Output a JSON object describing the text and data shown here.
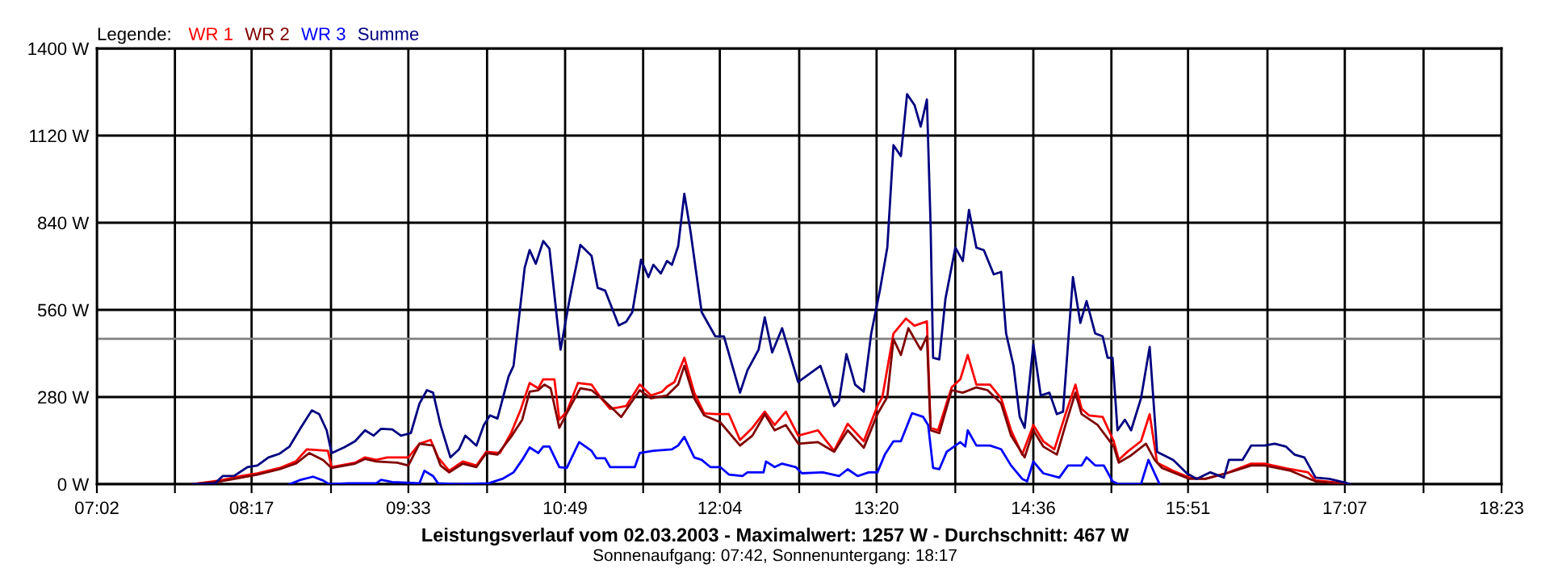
{
  "chart_data": {
    "type": "line",
    "title": "Leistungsverlauf vom 02.03.2003 - Maximalwert: 1257 W - Durchschnitt: 467 W",
    "subtitle": "Sonnenaufgang: 07:42, Sonnenuntergang: 18:17",
    "legend_title": "Legende:",
    "legend": "top left",
    "grid": true,
    "marker": "none",
    "line_style": "solid",
    "xlim": [
      7.0333,
      18.3833
    ],
    "ylim": [
      0,
      1400
    ],
    "xticks": [
      {
        "value": 7.0333,
        "label": "07:02"
      },
      {
        "value": 7.6639,
        "label": null
      },
      {
        "value": 8.2833,
        "label": "08:17"
      },
      {
        "value": 8.925,
        "label": null
      },
      {
        "value": 9.55,
        "label": "09:33"
      },
      {
        "value": 10.1861,
        "label": null
      },
      {
        "value": 10.8167,
        "label": "10:49"
      },
      {
        "value": 11.4472,
        "label": null
      },
      {
        "value": 12.0667,
        "label": "12:04"
      },
      {
        "value": 12.7083,
        "label": null
      },
      {
        "value": 13.3333,
        "label": "13:20"
      },
      {
        "value": 13.9694,
        "label": null
      },
      {
        "value": 14.6,
        "label": "14:36"
      },
      {
        "value": 15.2306,
        "label": null
      },
      {
        "value": 15.85,
        "label": "15:51"
      },
      {
        "value": 16.4917,
        "label": null
      },
      {
        "value": 17.1167,
        "label": "17:07"
      },
      {
        "value": 17.7528,
        "label": null
      },
      {
        "value": 18.3833,
        "label": "18:23"
      }
    ],
    "yticks": [
      {
        "value": 0,
        "label": "0 W"
      },
      {
        "value": 280,
        "label": "280 W"
      },
      {
        "value": 560,
        "label": "560 W"
      },
      {
        "value": 840,
        "label": "840 W"
      },
      {
        "value": 1120,
        "label": "1120 W"
      },
      {
        "value": 1400,
        "label": "1400 W"
      }
    ],
    "ref_lines": [
      {
        "axis": "y",
        "value": 467,
        "color": "#808080"
      }
    ],
    "series": [
      {
        "name": "WR 1",
        "color": "#ff0000",
        "x": [
          7.81,
          8.03,
          8.2,
          8.33,
          8.51,
          8.64,
          8.73,
          8.9,
          8.93,
          9.12,
          9.2,
          9.29,
          9.38,
          9.55,
          9.64,
          9.73,
          9.79,
          9.88,
          9.99,
          10.1,
          10.18,
          10.29,
          10.38,
          10.46,
          10.53,
          10.6,
          10.64,
          10.73,
          10.77,
          10.83,
          10.92,
          11.03,
          11.1,
          11.18,
          11.31,
          11.42,
          11.51,
          11.6,
          11.64,
          11.7,
          11.78,
          11.86,
          11.94,
          12.03,
          12.14,
          12.23,
          12.33,
          12.43,
          12.51,
          12.6,
          12.7,
          12.86,
          12.99,
          13.1,
          13.23,
          13.34,
          13.38,
          13.47,
          13.57,
          13.64,
          13.74,
          13.77,
          13.83,
          13.94,
          14.01,
          14.07,
          14.14,
          14.25,
          14.34,
          14.42,
          14.51,
          14.6,
          14.68,
          14.77,
          14.86,
          14.94,
          14.99,
          15.05,
          15.16,
          15.25,
          15.29,
          15.36,
          15.47,
          15.54,
          15.6,
          15.73,
          15.86,
          15.99,
          16.16,
          16.36,
          16.47,
          16.68,
          16.82,
          16.88,
          17.12,
          17.16
        ],
        "values": [
          0,
          12,
          26,
          35,
          52,
          73,
          112,
          107,
          55,
          69,
          86,
          78,
          86,
          86,
          130,
          142,
          86,
          43,
          73,
          60,
          104,
          100,
          164,
          242,
          325,
          308,
          337,
          337,
          207,
          233,
          325,
          320,
          280,
          242,
          251,
          320,
          285,
          297,
          313,
          328,
          406,
          294,
          228,
          225,
          225,
          142,
          181,
          233,
          190,
          233,
          156,
          173,
          107,
          194,
          138,
          251,
          280,
          484,
          532,
          509,
          523,
          181,
          173,
          311,
          337,
          415,
          320,
          320,
          276,
          173,
          95,
          190,
          138,
          112,
          225,
          320,
          242,
          221,
          216,
          138,
          78,
          104,
          138,
          225,
          69,
          43,
          21,
          17,
          35,
          66,
          66,
          48,
          38,
          12,
          3,
          0
        ]
      },
      {
        "name": "WR 2",
        "color": "#800000",
        "x": [
          7.81,
          8.03,
          8.2,
          8.33,
          8.51,
          8.64,
          8.75,
          8.86,
          8.93,
          9.12,
          9.2,
          9.29,
          9.46,
          9.55,
          9.64,
          9.75,
          9.81,
          9.88,
          9.99,
          10.1,
          10.18,
          10.27,
          10.38,
          10.47,
          10.53,
          10.6,
          10.65,
          10.7,
          10.77,
          10.83,
          10.94,
          11.03,
          11.12,
          11.27,
          11.42,
          11.51,
          11.64,
          11.73,
          11.78,
          11.86,
          11.94,
          12.07,
          12.23,
          12.33,
          12.43,
          12.51,
          12.6,
          12.7,
          12.86,
          12.99,
          13.1,
          13.23,
          13.34,
          13.42,
          13.47,
          13.53,
          13.59,
          13.69,
          13.74,
          13.77,
          13.84,
          13.94,
          14.03,
          14.14,
          14.23,
          14.34,
          14.42,
          14.53,
          14.6,
          14.68,
          14.79,
          14.86,
          14.94,
          14.99,
          15.12,
          15.25,
          15.29,
          15.38,
          15.51,
          15.58,
          15.64,
          15.86,
          15.99,
          16.16,
          16.36,
          16.47,
          16.68,
          16.88,
          17.12
        ],
        "values": [
          0,
          9,
          21,
          31,
          48,
          66,
          100,
          78,
          52,
          66,
          81,
          73,
          69,
          60,
          130,
          124,
          60,
          38,
          66,
          55,
          100,
          95,
          152,
          207,
          297,
          302,
          320,
          308,
          181,
          228,
          308,
          302,
          273,
          216,
          302,
          276,
          285,
          320,
          380,
          276,
          221,
          199,
          124,
          156,
          225,
          173,
          190,
          130,
          135,
          104,
          173,
          117,
          225,
          280,
          466,
          415,
          501,
          432,
          475,
          173,
          164,
          302,
          294,
          311,
          302,
          259,
          156,
          86,
          173,
          121,
          95,
          190,
          294,
          225,
          190,
          121,
          69,
          90,
          130,
          78,
          52,
          17,
          17,
          35,
          60,
          60,
          43,
          9,
          0
        ]
      },
      {
        "name": "WR 3",
        "color": "#0000ff",
        "x": [
          8.59,
          8.68,
          8.78,
          8.86,
          8.91,
          9.07,
          9.29,
          9.33,
          9.42,
          9.64,
          9.68,
          9.75,
          9.79,
          9.94,
          10.2,
          10.31,
          10.4,
          10.47,
          10.53,
          10.6,
          10.64,
          10.69,
          10.77,
          10.83,
          10.93,
          11.03,
          11.07,
          11.14,
          11.18,
          11.38,
          11.42,
          11.53,
          11.68,
          11.73,
          11.78,
          11.86,
          11.92,
          11.99,
          12.07,
          12.14,
          12.25,
          12.29,
          12.42,
          12.44,
          12.51,
          12.57,
          12.68,
          12.73,
          12.9,
          13.03,
          13.1,
          13.18,
          13.27,
          13.34,
          13.4,
          13.47,
          13.53,
          13.62,
          13.71,
          13.75,
          13.79,
          13.84,
          13.9,
          14.01,
          14.05,
          14.07,
          14.14,
          14.25,
          14.34,
          14.42,
          14.51,
          14.55,
          14.6,
          14.68,
          14.81,
          14.88,
          14.99,
          15.03,
          15.1,
          15.17,
          15.24,
          15.29,
          15.47,
          15.53,
          15.62
        ],
        "values": [
          0,
          14,
          24,
          12,
          0,
          3,
          3,
          14,
          7,
          3,
          43,
          26,
          3,
          0,
          3,
          17,
          38,
          78,
          118,
          100,
          121,
          121,
          55,
          52,
          135,
          107,
          83,
          83,
          55,
          55,
          100,
          107,
          112,
          124,
          152,
          86,
          78,
          55,
          55,
          31,
          26,
          38,
          38,
          73,
          55,
          66,
          55,
          35,
          38,
          26,
          48,
          26,
          38,
          38,
          95,
          138,
          138,
          228,
          216,
          190,
          52,
          48,
          104,
          135,
          121,
          173,
          124,
          124,
          112,
          60,
          17,
          9,
          73,
          35,
          21,
          60,
          60,
          86,
          60,
          60,
          9,
          0,
          0,
          78,
          0
        ]
      },
      {
        "name": "Summe",
        "color": "#000080",
        "x": [
          7.81,
          7.99,
          8.05,
          8.14,
          8.25,
          8.33,
          8.42,
          8.51,
          8.59,
          8.68,
          8.77,
          8.83,
          8.89,
          8.93,
          9.03,
          9.12,
          9.2,
          9.27,
          9.33,
          9.42,
          9.49,
          9.57,
          9.64,
          9.7,
          9.75,
          9.81,
          9.89,
          9.96,
          10.01,
          10.1,
          10.16,
          10.21,
          10.27,
          10.36,
          10.4,
          10.49,
          10.53,
          10.58,
          10.64,
          10.69,
          10.75,
          10.78,
          10.85,
          10.94,
          11.03,
          11.08,
          11.14,
          11.25,
          11.31,
          11.36,
          11.43,
          11.49,
          11.53,
          11.59,
          11.64,
          11.68,
          11.73,
          11.78,
          11.83,
          11.92,
          12.03,
          12.1,
          12.23,
          12.29,
          12.38,
          12.43,
          12.49,
          12.57,
          12.7,
          12.88,
          12.99,
          13.03,
          13.09,
          13.16,
          13.23,
          13.29,
          13.36,
          13.42,
          13.47,
          13.53,
          13.58,
          13.64,
          13.69,
          13.74,
          13.77,
          13.79,
          13.84,
          13.89,
          13.97,
          14.03,
          14.08,
          14.14,
          14.2,
          14.28,
          14.34,
          14.38,
          14.44,
          14.49,
          14.53,
          14.6,
          14.66,
          14.73,
          14.79,
          14.84,
          14.92,
          14.98,
          15.03,
          15.1,
          15.16,
          15.2,
          15.24,
          15.28,
          15.34,
          15.39,
          15.47,
          15.54,
          15.6,
          15.73,
          15.84,
          15.92,
          16.03,
          16.14,
          16.18,
          16.29,
          16.36,
          16.47,
          16.55,
          16.64,
          16.71,
          16.79,
          16.88,
          16.99,
          17.12,
          17.16
        ],
        "values": [
          0,
          3,
          26,
          26,
          55,
          60,
          86,
          98,
          121,
          181,
          237,
          225,
          173,
          100,
          118,
          138,
          173,
          156,
          178,
          176,
          156,
          164,
          259,
          302,
          294,
          190,
          86,
          112,
          156,
          124,
          190,
          221,
          211,
          346,
          380,
          695,
          752,
          708,
          781,
          757,
          536,
          432,
          588,
          769,
          734,
          631,
          622,
          510,
          522,
          553,
          721,
          665,
          705,
          677,
          717,
          705,
          764,
          933,
          812,
          553,
          475,
          475,
          294,
          366,
          432,
          536,
          423,
          501,
          328,
          380,
          251,
          268,
          418,
          320,
          297,
          484,
          622,
          760,
          1089,
          1054,
          1253,
          1218,
          1149,
          1236,
          829,
          406,
          401,
          596,
          760,
          717,
          881,
          760,
          752,
          674,
          682,
          484,
          380,
          216,
          181,
          449,
          285,
          294,
          225,
          233,
          665,
          518,
          588,
          484,
          475,
          406,
          406,
          173,
          207,
          173,
          276,
          441,
          104,
          78,
          35,
          17,
          38,
          21,
          78,
          78,
          124,
          124,
          130,
          121,
          95,
          86,
          21,
          17,
          5,
          0
        ]
      }
    ]
  }
}
